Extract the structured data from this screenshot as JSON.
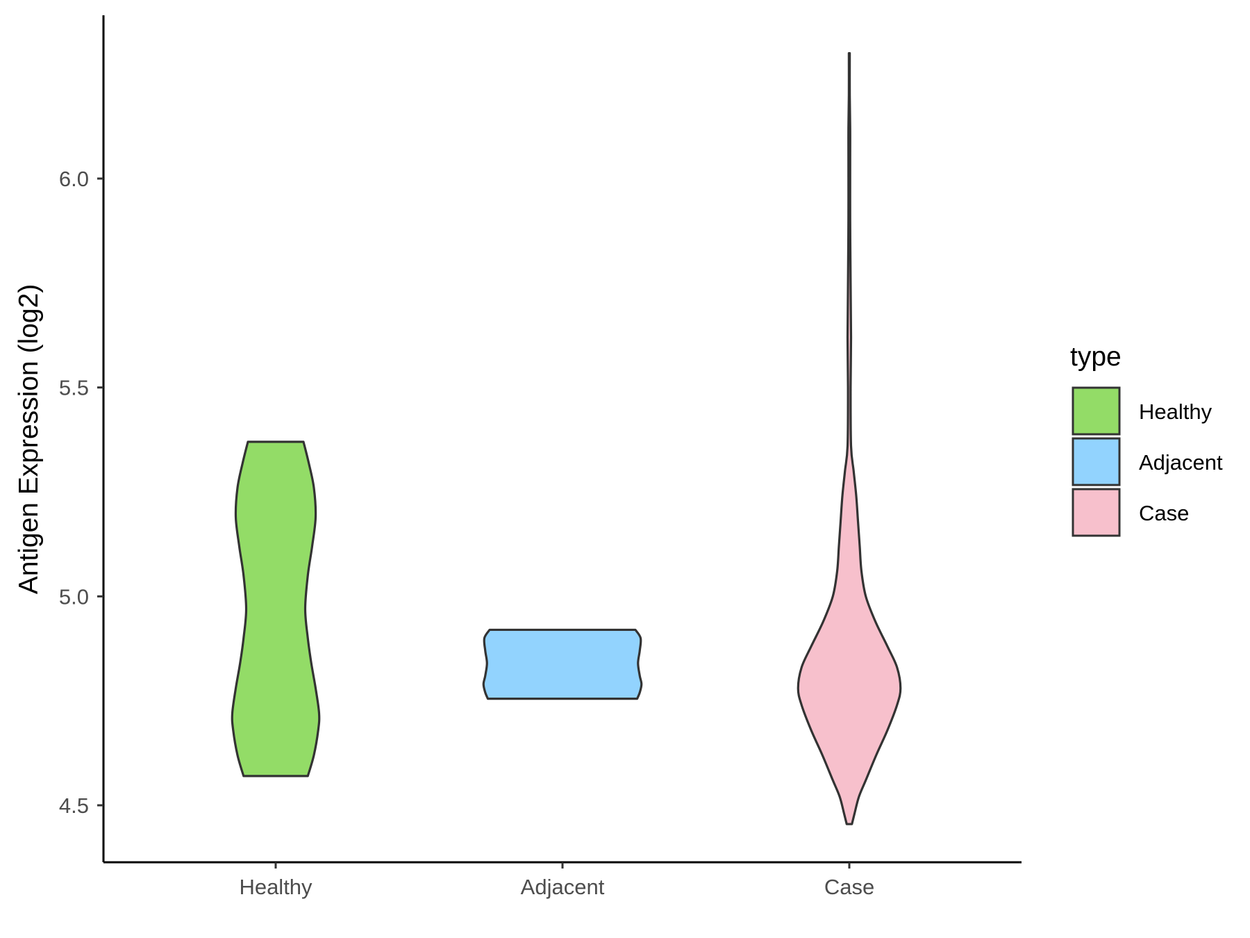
{
  "chart_data": {
    "type": "violin",
    "title": "",
    "xlabel": "",
    "ylabel": "Antigen Expression (log2)",
    "ylim": [
      4.36,
      6.38
    ],
    "yticks": [
      4.5,
      5.0,
      5.5,
      6.0
    ],
    "ytick_labels": [
      "4.5",
      "5.0",
      "5.5",
      "6.0"
    ],
    "categories": [
      "Healthy",
      "Adjacent",
      "Case"
    ],
    "grid": false,
    "legend": {
      "title": "type",
      "placement": "right",
      "entries": [
        "Healthy",
        "Adjacent",
        "Case"
      ]
    },
    "series": [
      {
        "name": "Healthy",
        "color": "#93dc67",
        "min": 4.57,
        "max": 5.37,
        "density_profile": [
          [
            4.57,
            0.37
          ],
          [
            4.62,
            0.44
          ],
          [
            4.68,
            0.49
          ],
          [
            4.72,
            0.5
          ],
          [
            4.78,
            0.46
          ],
          [
            4.84,
            0.41
          ],
          [
            4.9,
            0.37
          ],
          [
            4.97,
            0.34
          ],
          [
            5.05,
            0.37
          ],
          [
            5.12,
            0.42
          ],
          [
            5.19,
            0.46
          ],
          [
            5.26,
            0.44
          ],
          [
            5.32,
            0.38
          ],
          [
            5.37,
            0.32
          ]
        ]
      },
      {
        "name": "Adjacent",
        "color": "#92d3fe",
        "min": 4.755,
        "max": 4.92,
        "density_profile": [
          [
            4.755,
            0.86
          ],
          [
            4.77,
            0.89
          ],
          [
            4.79,
            0.91
          ],
          [
            4.81,
            0.89
          ],
          [
            4.84,
            0.87
          ],
          [
            4.87,
            0.89
          ],
          [
            4.9,
            0.9
          ],
          [
            4.92,
            0.84
          ]
        ]
      },
      {
        "name": "Case",
        "color": "#f7c0cc",
        "min": 4.455,
        "max": 6.3,
        "density_profile": [
          [
            4.455,
            0.03
          ],
          [
            4.48,
            0.06
          ],
          [
            4.52,
            0.11
          ],
          [
            4.56,
            0.19
          ],
          [
            4.62,
            0.31
          ],
          [
            4.68,
            0.44
          ],
          [
            4.74,
            0.55
          ],
          [
            4.78,
            0.59
          ],
          [
            4.83,
            0.55
          ],
          [
            4.88,
            0.44
          ],
          [
            4.94,
            0.3
          ],
          [
            5.0,
            0.19
          ],
          [
            5.06,
            0.14
          ],
          [
            5.12,
            0.12
          ],
          [
            5.18,
            0.1
          ],
          [
            5.24,
            0.08
          ],
          [
            5.3,
            0.05
          ],
          [
            5.36,
            0.02
          ],
          [
            5.5,
            0.015
          ],
          [
            5.62,
            0.02
          ],
          [
            5.75,
            0.015
          ],
          [
            5.9,
            0.01
          ],
          [
            6.05,
            0.01
          ],
          [
            6.12,
            0.01
          ],
          [
            6.2,
            0.005
          ],
          [
            6.3,
            0.005
          ]
        ]
      }
    ]
  }
}
